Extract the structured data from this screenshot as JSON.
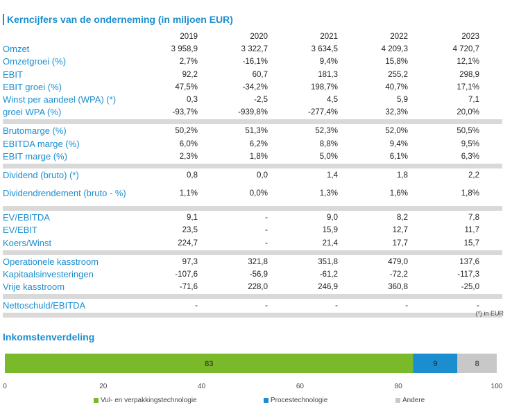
{
  "title": "Kerncijfers van de onderneming (in miljoen EUR)",
  "years": [
    "2019",
    "2020",
    "2021",
    "2022",
    "2023"
  ],
  "groups": [
    [
      {
        "label": "Omzet",
        "values": [
          "3 958,9",
          "3 322,7",
          "3 634,5",
          "4 209,3",
          "4 720,7"
        ]
      },
      {
        "label": "Omzetgroei (%)",
        "values": [
          "2,7%",
          "-16,1%",
          "9,4%",
          "15,8%",
          "12,1%"
        ]
      },
      {
        "label": "EBIT",
        "values": [
          "92,2",
          "60,7",
          "181,3",
          "255,2",
          "298,9"
        ]
      },
      {
        "label": "EBIT groei (%)",
        "values": [
          "47,5%",
          "-34,2%",
          "198,7%",
          "40,7%",
          "17,1%"
        ]
      },
      {
        "label": "Winst per aandeel (WPA) (*)",
        "values": [
          "0,3",
          "-2,5",
          "4,5",
          "5,9",
          "7,1"
        ]
      },
      {
        "label": "groei WPA (%)",
        "values": [
          "-93,7%",
          "-939,8%",
          "-277,4%",
          "32,3%",
          "20,0%"
        ]
      }
    ],
    [
      {
        "label": "Brutomarge (%)",
        "values": [
          "50,2%",
          "51,3%",
          "52,3%",
          "52,0%",
          "50,5%"
        ]
      },
      {
        "label": "EBITDA marge (%)",
        "values": [
          "6,0%",
          "6,2%",
          "8,8%",
          "9,4%",
          "9,5%"
        ]
      },
      {
        "label": "EBIT marge (%)",
        "values": [
          "2,3%",
          "1,8%",
          "5,0%",
          "6,1%",
          "6,3%"
        ]
      }
    ],
    [
      {
        "label": "Dividend (bruto) (*)",
        "values": [
          "0,8",
          "0,0",
          "1,4",
          "1,8",
          "2,2"
        ]
      },
      {
        "label": "Dividendrendement (bruto - %)",
        "values": [
          "1,1%",
          "0,0%",
          "1,3%",
          "1,6%",
          "1,8%"
        ],
        "tall": true
      }
    ],
    [
      {
        "label": "EV/EBITDA",
        "values": [
          "9,1",
          "-",
          "9,0",
          "8,2",
          "7,8"
        ]
      },
      {
        "label": "EV/EBIT",
        "values": [
          "23,5",
          "-",
          "15,9",
          "12,7",
          "11,7"
        ]
      },
      {
        "label": "Koers/Winst",
        "values": [
          "224,7",
          "-",
          "21,4",
          "17,7",
          "15,7"
        ]
      }
    ],
    [
      {
        "label": "Operationele kasstroom",
        "values": [
          "97,3",
          "321,8",
          "351,8",
          "479,0",
          "137,6"
        ]
      },
      {
        "label": "Kapitaalsinvesteringen",
        "values": [
          "-107,6",
          "-56,9",
          "-61,2",
          "-72,2",
          "-117,3"
        ]
      },
      {
        "label": "Vrije kasstroom",
        "values": [
          "-71,6",
          "228,0",
          "246,9",
          "360,8",
          "-25,0"
        ]
      }
    ],
    [
      {
        "label": "Nettoschuld/EBITDA",
        "values": [
          "-",
          "-",
          "-",
          "-",
          "-"
        ]
      }
    ]
  ],
  "note": "(*) in EUR",
  "subtitle": "Inkomstenverdeling",
  "chart_data": {
    "type": "bar",
    "orientation": "horizontal-stacked",
    "series": [
      {
        "name": "Vul- en verpakkingstechnologie",
        "value": 83,
        "color": "#7ab929"
      },
      {
        "name": "Procestechnologie",
        "value": 9,
        "color": "#1b8ed0"
      },
      {
        "name": "Andere",
        "value": 8,
        "color": "#c8c8c8"
      }
    ],
    "xlim": [
      0,
      100
    ],
    "ticks": [
      "0",
      "20",
      "40",
      "60",
      "80",
      "100"
    ],
    "legend": "bottom"
  }
}
